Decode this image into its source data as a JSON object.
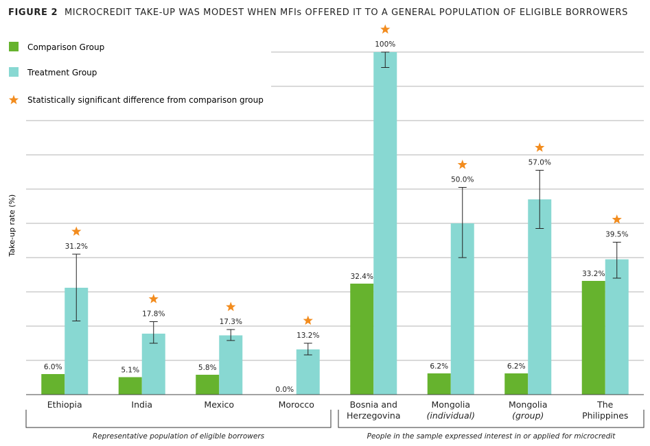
{
  "chart_data": {
    "type": "bar",
    "title_prefix": "FIGURE 2",
    "title": "MICROCREDIT TAKE-UP WAS MODEST WHEN MFIs OFFERED IT TO A GENERAL POPULATION OF ELIGIBLE BORROWERS",
    "ylabel": "Take-up rate (%)",
    "ylim": [
      0,
      100
    ],
    "grid": true,
    "legend_position": "top-left",
    "legend": [
      {
        "name": "Comparison Group",
        "marker": "square",
        "color": "#66b32e"
      },
      {
        "name": "Treatment Group",
        "marker": "square",
        "color": "#88d8d2"
      },
      {
        "name": "Statistically significant difference from comparison group",
        "marker": "star",
        "color": "#f28c1e"
      }
    ],
    "categories": [
      {
        "line1": "Ethiopia",
        "line2": "",
        "italic2": false
      },
      {
        "line1": "India",
        "line2": "",
        "italic2": false
      },
      {
        "line1": "Mexico",
        "line2": "",
        "italic2": false
      },
      {
        "line1": "Morocco",
        "line2": "",
        "italic2": false
      },
      {
        "line1": "Bosnia and",
        "line2": "Herzegovina",
        "italic2": false
      },
      {
        "line1": "Mongolia",
        "line2": "(individual)",
        "italic2": true
      },
      {
        "line1": "Mongolia",
        "line2": "(group)",
        "italic2": true
      },
      {
        "line1": "The",
        "line2": "Philippines",
        "italic2": false
      }
    ],
    "series": [
      {
        "name": "Comparison Group",
        "color": "#66b32e",
        "values": [
          6.0,
          5.1,
          5.8,
          0.0,
          32.4,
          6.2,
          6.2,
          33.2
        ],
        "labels": [
          "6.0%",
          "5.1%",
          "5.8%",
          "0.0%",
          "32.4%",
          "6.2%",
          "6.2%",
          "33.2%"
        ]
      },
      {
        "name": "Treatment Group",
        "color": "#88d8d2",
        "values": [
          31.2,
          17.8,
          17.3,
          13.2,
          100,
          50.0,
          57.0,
          39.5
        ],
        "labels": [
          "31.2%",
          "17.8%",
          "17.3%",
          "13.2%",
          "100%",
          "50.0%",
          "57.0%",
          "39.5%"
        ],
        "error_low": [
          21.5,
          15.0,
          15.8,
          11.6,
          95.5,
          40.0,
          48.5,
          34.0
        ],
        "error_high": [
          41.0,
          21.3,
          19.0,
          15.0,
          100,
          60.5,
          65.5,
          44.5
        ],
        "significant": [
          true,
          true,
          true,
          true,
          true,
          true,
          true,
          true
        ]
      }
    ],
    "groups": [
      {
        "label": "Representative population of eligible borrowers",
        "from": 0,
        "to": 3
      },
      {
        "label": "People in the sample expressed interest in or applied for microcredit",
        "from": 4,
        "to": 7
      }
    ]
  }
}
